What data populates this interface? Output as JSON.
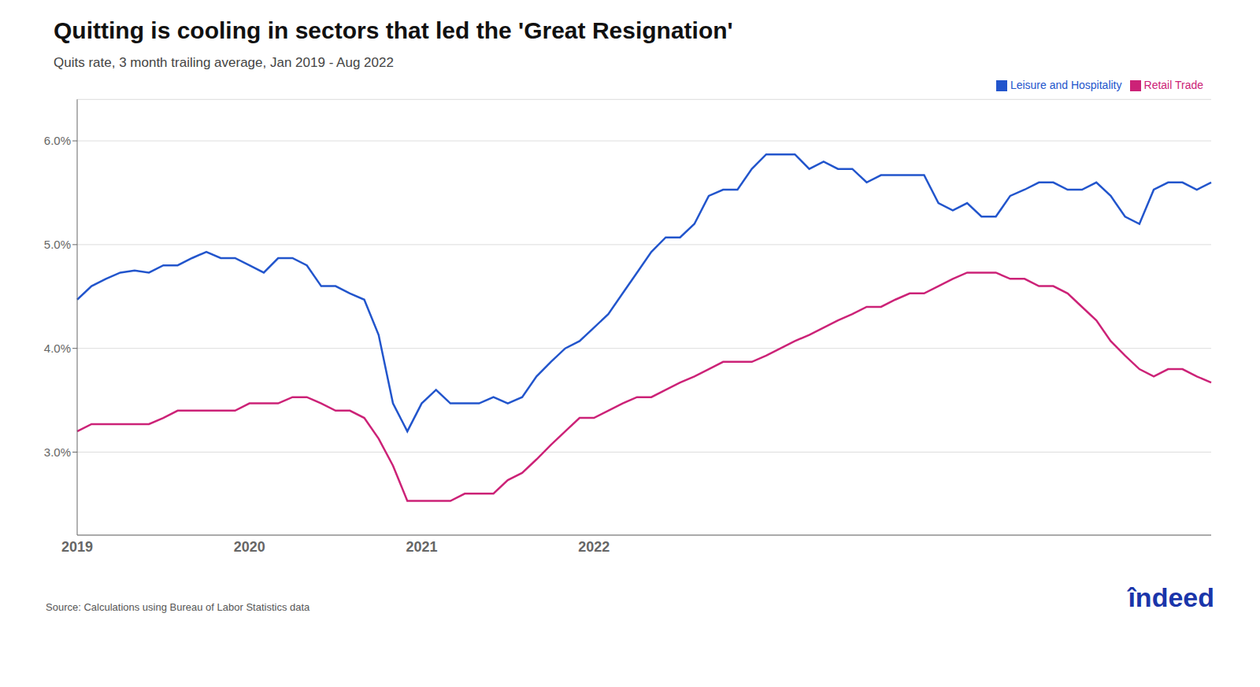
{
  "chart_data": {
    "type": "line",
    "title": "Quitting is cooling in sectors that led the 'Great Resignation'",
    "subtitle": "Quits rate, 3 month trailing average, Jan 2019 - Aug 2022",
    "annotations": [
      {
        "text": "Source: Calculations using Bureau of Labor Statistics data"
      },
      {
        "text": "îndeed",
        "color": "#1a35aa"
      }
    ],
    "categories": [
      "2019",
      null,
      null,
      null,
      null,
      null,
      null,
      null,
      null,
      null,
      null,
      null,
      "2020",
      null,
      null,
      null,
      null,
      null,
      null,
      null,
      null,
      null,
      null,
      null,
      "2021",
      null,
      null,
      null,
      null,
      null,
      null,
      null,
      null,
      null,
      null,
      null,
      "2022",
      null,
      null,
      null,
      null,
      null,
      null,
      null,
      null,
      null,
      null,
      null,
      null,
      null,
      null,
      null,
      null,
      null,
      null,
      null,
      null,
      null,
      null,
      null,
      null,
      null,
      null,
      null,
      null,
      null,
      null,
      null,
      null,
      null,
      null,
      null,
      null,
      null,
      null,
      null,
      null,
      null,
      null,
      null
    ],
    "series": [
      {
        "name": "Leisure and Hospitality",
        "color": "#2255cc",
        "values": [
          4.47,
          4.6,
          4.67,
          4.73,
          4.75,
          4.73,
          4.8,
          4.8,
          4.87,
          4.93,
          4.87,
          4.87,
          4.8,
          4.73,
          4.87,
          4.87,
          4.8,
          4.6,
          4.6,
          4.53,
          4.47,
          4.13,
          3.47,
          3.2,
          3.47,
          3.6,
          3.47,
          3.47,
          3.47,
          3.53,
          3.47,
          3.53,
          3.73,
          3.87,
          4.0,
          4.07,
          4.2,
          4.33,
          4.53,
          4.73,
          4.93,
          5.07,
          5.07,
          5.2,
          5.47,
          5.53,
          5.53,
          5.73,
          5.87,
          5.87,
          5.87,
          5.73,
          5.8,
          5.73,
          5.73,
          5.6,
          5.67,
          5.67,
          5.67,
          5.67,
          5.4,
          5.33,
          5.4,
          5.27,
          5.27,
          5.47,
          5.53,
          5.6,
          5.6,
          5.53,
          5.53,
          5.6,
          5.47,
          5.27,
          5.2,
          5.53,
          5.6,
          5.6,
          5.53,
          5.6
        ]
      },
      {
        "name": "Retail Trade",
        "color": "#cc2277",
        "values": [
          3.2,
          3.27,
          3.27,
          3.27,
          3.27,
          3.27,
          3.33,
          3.4,
          3.4,
          3.4,
          3.4,
          3.4,
          3.47,
          3.47,
          3.47,
          3.53,
          3.53,
          3.47,
          3.4,
          3.4,
          3.33,
          3.13,
          2.87,
          2.53,
          2.53,
          2.53,
          2.53,
          2.6,
          2.6,
          2.6,
          2.73,
          2.8,
          2.93,
          3.07,
          3.2,
          3.33,
          3.33,
          3.4,
          3.47,
          3.53,
          3.53,
          3.6,
          3.67,
          3.73,
          3.8,
          3.87,
          3.87,
          3.87,
          3.93,
          4.0,
          4.07,
          4.13,
          4.2,
          4.27,
          4.33,
          4.4,
          4.4,
          4.47,
          4.53,
          4.53,
          4.6,
          4.67,
          4.73,
          4.73,
          4.73,
          4.67,
          4.67,
          4.6,
          4.6,
          4.53,
          4.4,
          4.27,
          4.07,
          3.93,
          3.8,
          3.73,
          3.8,
          3.8,
          3.73,
          3.67
        ]
      }
    ],
    "ylim": [
      2.2,
      6.4
    ],
    "yticks": [
      {
        "value": 3.0,
        "label": "3.0%"
      },
      {
        "value": 4.0,
        "label": "4.0%"
      },
      {
        "value": 5.0,
        "label": "5.0%"
      },
      {
        "value": 6.0,
        "label": "6.0%"
      }
    ],
    "grid": true,
    "legend": "upper right"
  }
}
